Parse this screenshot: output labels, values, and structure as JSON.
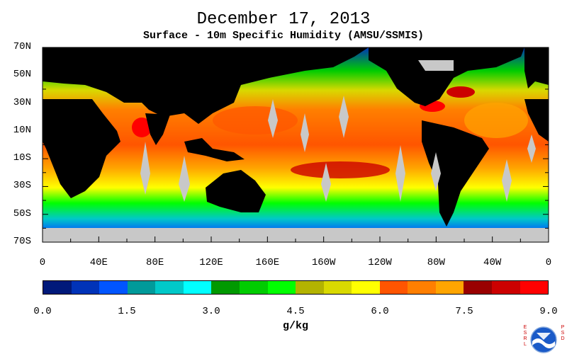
{
  "header": {
    "title": "December 17, 2013",
    "subtitle": "Surface - 10m Specific Humidity (AMSU/SSMIS)"
  },
  "map": {
    "lat_labels": [
      "70N",
      "50N",
      "30N",
      "10N",
      "10S",
      "30S",
      "50S",
      "70S"
    ],
    "lon_labels": [
      "0",
      "40E",
      "80E",
      "120E",
      "160E",
      "160W",
      "120W",
      "80W",
      "40W",
      "0"
    ]
  },
  "colorbar": {
    "colors": [
      "#00197a",
      "#0033b8",
      "#0055ff",
      "#009a9a",
      "#00c8c8",
      "#00ffff",
      "#009900",
      "#00cc00",
      "#00ff00",
      "#b3b300",
      "#d9d900",
      "#ffff00",
      "#ff5500",
      "#ff7f00",
      "#ffa500",
      "#990000",
      "#cc0000",
      "#ff0000"
    ],
    "ticks": [
      "0.0",
      "1.5",
      "3.0",
      "4.5",
      "6.0",
      "7.5",
      "9.0"
    ],
    "units": "g/kg"
  },
  "logo": {
    "left_text": "ESRL",
    "right_text": "PSD",
    "icon": "noaa-logo-icon"
  }
}
